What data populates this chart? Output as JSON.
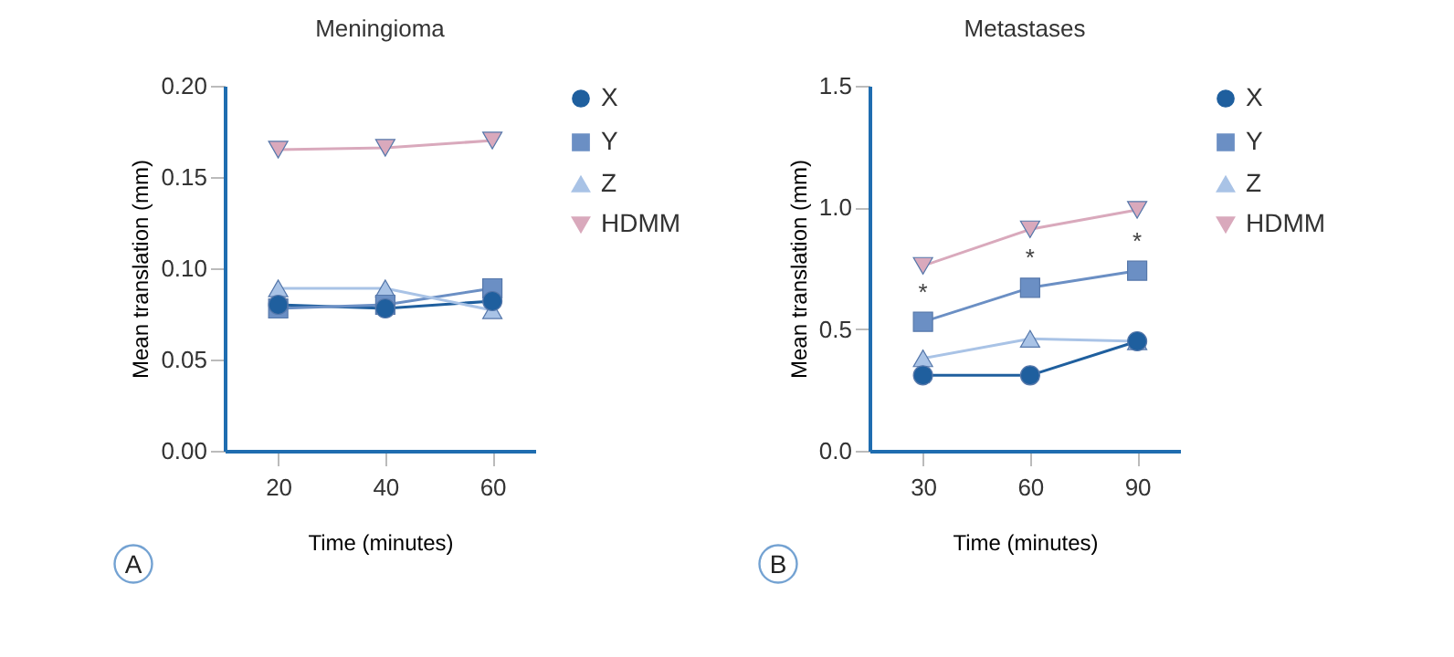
{
  "chart_data": [
    {
      "type": "line",
      "title": "Meningioma",
      "xlabel": "Time (minutes)",
      "ylabel": "Mean translation (mm)",
      "x": [
        20,
        40,
        60
      ],
      "xlim": [
        10,
        68
      ],
      "xticks": [
        20,
        40,
        60
      ],
      "ylim": [
        0,
        0.2
      ],
      "yticks": [
        {
          "value": 0,
          "label": "0.00"
        },
        {
          "value": 0.05,
          "label": "0.05"
        },
        {
          "value": 0.1,
          "label": "0.10"
        },
        {
          "value": 0.15,
          "label": "0.15"
        },
        {
          "value": 0.2,
          "label": "0.20"
        }
      ],
      "grid": false,
      "legend": "right",
      "line_style": "solid",
      "series": [
        {
          "name": "X",
          "color": "#1f5f9e",
          "marker": "circle",
          "values": [
            0.08,
            0.078,
            0.082
          ]
        },
        {
          "name": "Y",
          "color": "#6b8fc4",
          "marker": "square",
          "values": [
            0.078,
            0.08,
            0.089
          ]
        },
        {
          "name": "Z",
          "color": "#a9c3e6",
          "marker": "triangle",
          "values": [
            0.089,
            0.089,
            0.077
          ]
        },
        {
          "name": "HDMM",
          "color": "#d9a9bc",
          "marker": "triangle-down",
          "values": [
            0.165,
            0.166,
            0.17
          ]
        }
      ],
      "annotations": [
        "A"
      ]
    },
    {
      "type": "line",
      "title": "Metastases",
      "xlabel": "Time (minutes)",
      "ylabel": "Mean translation (mm)",
      "x": [
        30,
        60,
        90
      ],
      "xlim": [
        15,
        102
      ],
      "xticks": [
        30,
        60,
        90
      ],
      "ylim": [
        0,
        1.5
      ],
      "yticks": [
        {
          "value": 0,
          "label": "0.0"
        },
        {
          "value": 0.5,
          "label": "0.5"
        },
        {
          "value": 1,
          "label": "1.0"
        },
        {
          "value": 1.5,
          "label": "1.5"
        }
      ],
      "grid": false,
      "legend": "right",
      "line_style": "solid",
      "series": [
        {
          "name": "X",
          "color": "#1f5f9e",
          "marker": "circle",
          "values": [
            0.31,
            0.31,
            0.45
          ]
        },
        {
          "name": "Y",
          "color": "#6b8fc4",
          "marker": "square",
          "values": [
            0.53,
            0.67,
            0.74
          ]
        },
        {
          "name": "Z",
          "color": "#a9c3e6",
          "marker": "triangle",
          "values": [
            0.38,
            0.46,
            0.45
          ]
        },
        {
          "name": "HDMM",
          "color": "#d9a9bc",
          "marker": "triangle-down",
          "values": [
            0.76,
            0.91,
            0.99
          ]
        }
      ],
      "annotations": [
        "B",
        {
          "text": "*",
          "x": 30,
          "y": 0.53
        },
        {
          "text": "*",
          "x": 60,
          "y": 0.67
        },
        {
          "text": "*",
          "x": 90,
          "y": 0.74
        }
      ]
    }
  ]
}
